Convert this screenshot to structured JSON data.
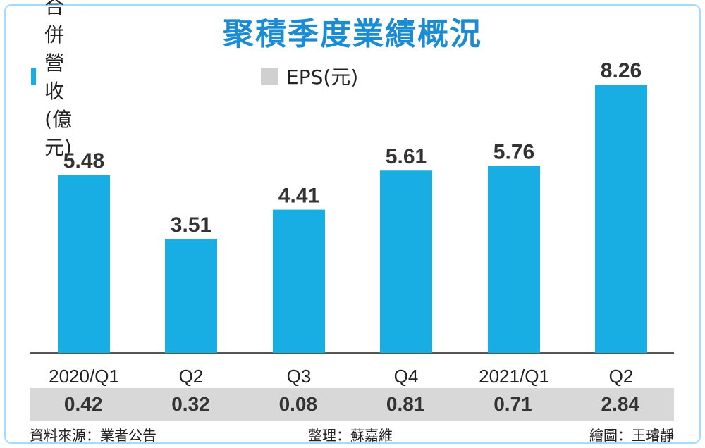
{
  "title": "聚積季度業績概況",
  "legend": [
    {
      "label": "合併營收(億元)",
      "color": "#18aee4"
    },
    {
      "label": "EPS(元)",
      "color": "#d0d0d0"
    }
  ],
  "chart_data": {
    "type": "bar",
    "categories": [
      "2020/Q1",
      "Q2",
      "Q3",
      "Q4",
      "2021/Q1",
      "Q2"
    ],
    "series": [
      {
        "name": "合併營收(億元)",
        "values": [
          5.48,
          3.51,
          4.41,
          5.61,
          5.76,
          8.26
        ]
      },
      {
        "name": "EPS(元)",
        "values": [
          0.42,
          0.32,
          0.08,
          0.81,
          0.71,
          2.84
        ]
      }
    ],
    "ylim": [
      0,
      8.26
    ],
    "grid": false,
    "legend_position": "top-left",
    "bar_color": "#18aee4",
    "eps_band_color": "#d8d8d8"
  },
  "eps_values": [
    "0.42",
    "0.32",
    "0.08",
    "0.81",
    "0.71",
    "2.84"
  ],
  "revenue_labels": [
    "5.48",
    "3.51",
    "4.41",
    "5.61",
    "5.76",
    "8.26"
  ],
  "footer": {
    "source": "資料來源：業者公告",
    "editor": "整理：蘇嘉維",
    "artist": "繪圖：王璿靜"
  },
  "colors": {
    "title": "#1b8bd3",
    "frame": "#9fdcff",
    "bar": "#18aee4",
    "eps_band": "#d8d8d8"
  }
}
